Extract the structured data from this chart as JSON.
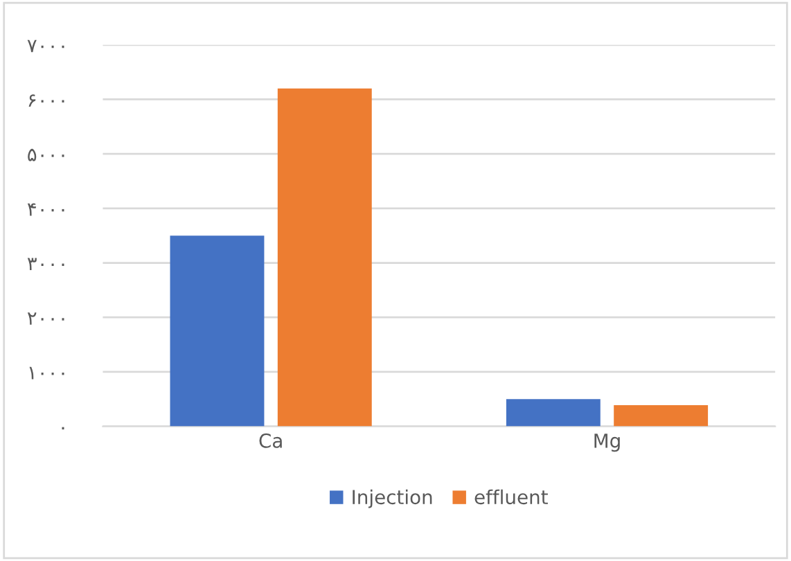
{
  "chart_data": {
    "type": "bar",
    "categories": [
      "Ca",
      "Mg"
    ],
    "series": [
      {
        "name": "Injection",
        "color": "#4472c4",
        "values": [
          3500,
          500
        ]
      },
      {
        "name": "effluent",
        "color": "#ed7d31",
        "values": [
          6200,
          390
        ]
      }
    ],
    "ylim": [
      0,
      7000
    ],
    "yticks": [
      {
        "value": 0,
        "label": "۰"
      },
      {
        "value": 1000,
        "label": "۱۰۰۰"
      },
      {
        "value": 2000,
        "label": "۲۰۰۰"
      },
      {
        "value": 3000,
        "label": "۳۰۰۰"
      },
      {
        "value": 4000,
        "label": "۴۰۰۰"
      },
      {
        "value": 5000,
        "label": "۵۰۰۰"
      },
      {
        "value": 6000,
        "label": "۶۰۰۰"
      },
      {
        "value": 7000,
        "label": "۷۰۰۰"
      }
    ],
    "grid": "y",
    "legend": "bottom"
  }
}
